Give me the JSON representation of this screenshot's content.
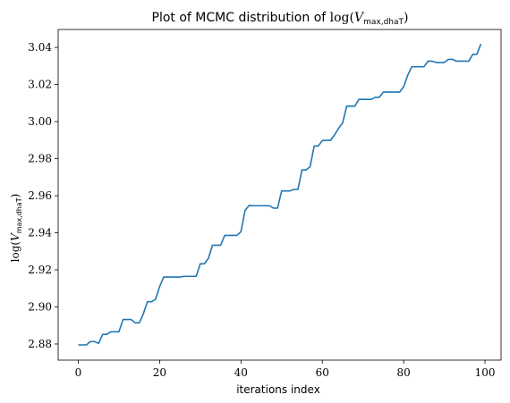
{
  "chart_data": {
    "type": "line",
    "title": "Plot of MCMC distribution of log(V_{max,dhaT})",
    "xlabel": "iterations index",
    "ylabel": "log(V_{max,dhaT})",
    "xlim": [
      -4.95,
      103.95
    ],
    "ylim": [
      2.8713,
      3.0497
    ],
    "xticks": [
      0,
      20,
      40,
      60,
      80,
      100
    ],
    "yticks": [
      2.88,
      2.9,
      2.92,
      2.94,
      2.96,
      2.98,
      3.0,
      3.02,
      3.04
    ],
    "grid": false,
    "line_color": "#1f77b4",
    "series": [
      {
        "x": [
          0,
          1,
          2,
          3,
          4,
          5,
          6,
          7,
          8,
          9,
          10,
          11,
          12,
          13,
          14,
          15,
          16,
          17,
          18,
          19,
          20,
          21,
          22,
          23,
          24,
          25,
          26,
          27,
          28,
          29,
          30,
          31,
          32,
          33,
          34,
          35,
          36,
          37,
          38,
          39,
          40,
          41,
          42,
          43,
          44,
          45,
          46,
          47,
          48,
          49,
          50,
          51,
          52,
          53,
          54,
          55,
          56,
          57,
          58,
          59,
          60,
          61,
          62,
          63,
          64,
          65,
          66,
          67,
          68,
          69,
          70,
          71,
          72,
          73,
          74,
          75,
          76,
          77,
          78,
          79,
          80,
          81,
          82,
          83,
          84,
          85,
          86,
          87,
          88,
          89,
          90,
          91,
          92,
          93,
          94,
          95,
          96,
          97,
          98,
          99
        ],
        "values": [
          2.8795,
          2.8795,
          2.8795,
          2.8813,
          2.8813,
          2.8803,
          2.8852,
          2.8852,
          2.8866,
          2.8866,
          2.8866,
          2.8932,
          2.8932,
          2.8932,
          2.8914,
          2.8914,
          2.8963,
          2.9028,
          2.9028,
          2.9041,
          2.911,
          2.9161,
          2.9161,
          2.9161,
          2.9161,
          2.9161,
          2.9165,
          2.9165,
          2.9165,
          2.9165,
          2.9233,
          2.9233,
          2.9262,
          2.9333,
          2.9333,
          2.9333,
          2.9386,
          2.9386,
          2.9386,
          2.9386,
          2.9406,
          2.952,
          2.9548,
          2.9546,
          2.9546,
          2.9546,
          2.9546,
          2.9546,
          2.9533,
          2.9533,
          2.9626,
          2.9626,
          2.9626,
          2.9634,
          2.9634,
          2.9739,
          2.9739,
          2.9757,
          2.9868,
          2.9868,
          2.9898,
          2.9898,
          2.9898,
          2.9928,
          2.9963,
          2.9993,
          3.0083,
          3.0083,
          3.0083,
          3.012,
          3.012,
          3.012,
          3.012,
          3.0131,
          3.0131,
          3.0159,
          3.0159,
          3.0159,
          3.0159,
          3.0159,
          3.0188,
          3.025,
          3.0296,
          3.0296,
          3.0296,
          3.0296,
          3.0326,
          3.0326,
          3.0319,
          3.0319,
          3.0319,
          3.0336,
          3.0336,
          3.0326,
          3.0326,
          3.0326,
          3.0326,
          3.0363,
          3.0363,
          3.0419
        ]
      }
    ]
  }
}
